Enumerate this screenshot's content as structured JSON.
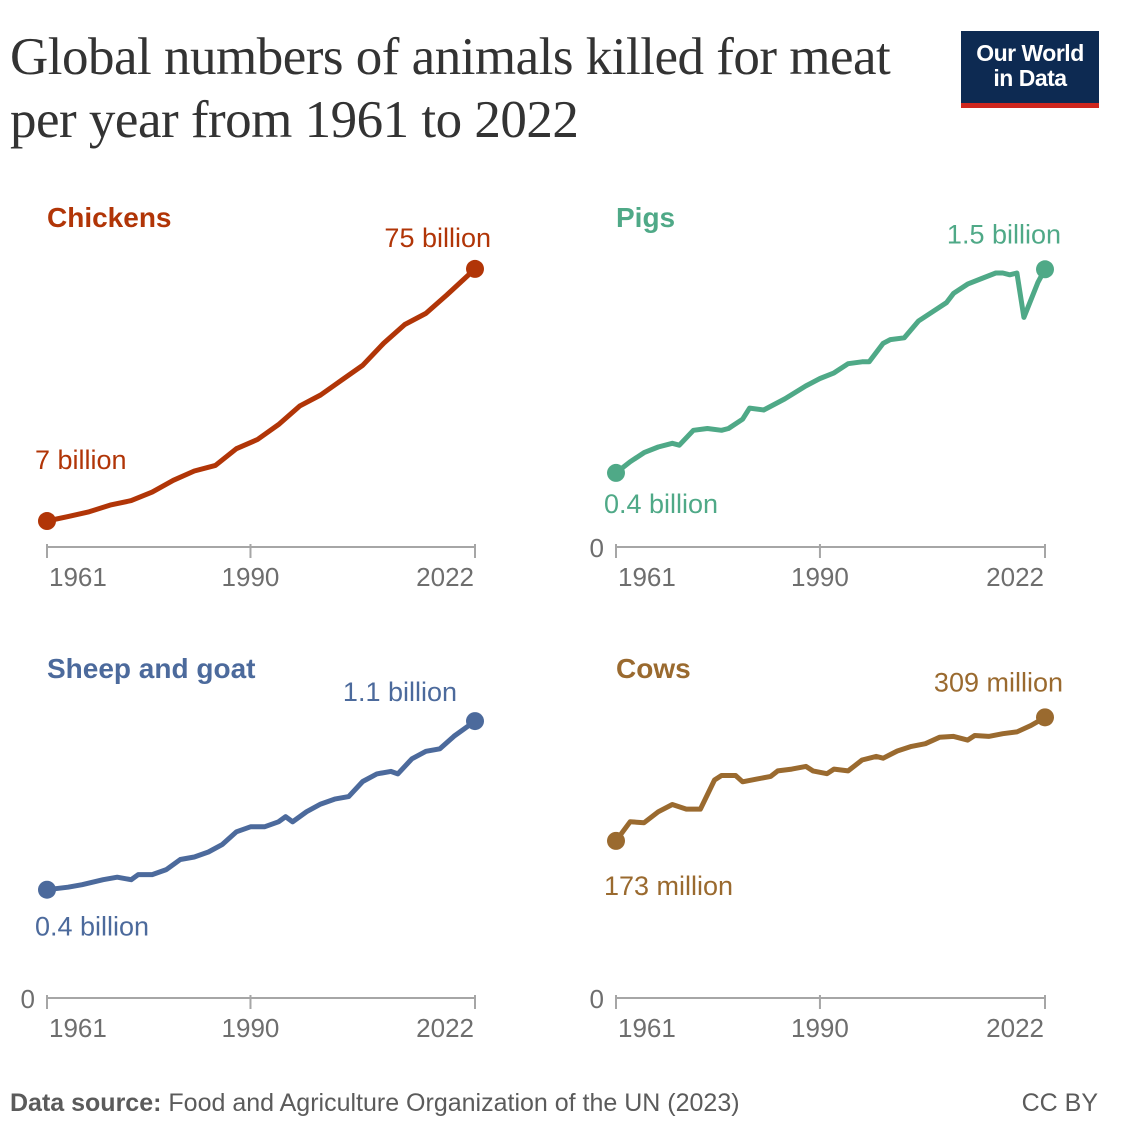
{
  "title": "Global numbers of animals killed for meat per year from 1961 to 2022",
  "logo": {
    "line1": "Our World",
    "line2": "in Data"
  },
  "footer": {
    "source_label": "Data source:",
    "source_text": "Food and Agriculture Organization of the UN (2023)",
    "license": "CC BY"
  },
  "chart_data": [
    {
      "type": "line",
      "title": "Chickens",
      "color": "#b13507",
      "unit": "billion",
      "xticks": [
        "1961",
        "1990",
        "2022"
      ],
      "zero_label": "",
      "start_label": "7 billion",
      "end_label": "75 billion",
      "ylim": [
        0,
        77.4
      ],
      "x": [
        1961,
        1964,
        1967,
        1970,
        1973,
        1976,
        1979,
        1982,
        1985,
        1988,
        1991,
        1994,
        1997,
        2000,
        2003,
        2006,
        2009,
        2012,
        2015,
        2018,
        2020,
        2022
      ],
      "y": [
        7,
        8.2,
        9.5,
        11.3,
        12.5,
        14.8,
        18,
        20.5,
        22,
        26.5,
        29,
        33,
        38,
        41,
        45,
        49,
        55,
        60,
        63,
        68,
        71.5,
        75
      ]
    },
    {
      "type": "line",
      "title": "Pigs",
      "color": "#4fa987",
      "unit": "billion",
      "xticks": [
        "1961",
        "1990",
        "2022"
      ],
      "zero_label": "0",
      "start_label": "0.4 billion",
      "end_label": "1.5 billion",
      "ylim": [
        0,
        1.55
      ],
      "x": [
        1961,
        1963,
        1965,
        1967,
        1969,
        1970,
        1972,
        1974,
        1976,
        1977,
        1979,
        1980,
        1982,
        1985,
        1988,
        1990,
        1992,
        1994,
        1996,
        1997,
        1999,
        2000,
        2002,
        2004,
        2006,
        2008,
        2009,
        2011,
        2013,
        2015,
        2016,
        2017,
        2018,
        2019,
        2021,
        2022
      ],
      "y": [
        0.4,
        0.46,
        0.51,
        0.54,
        0.56,
        0.55,
        0.63,
        0.64,
        0.63,
        0.64,
        0.69,
        0.75,
        0.74,
        0.8,
        0.87,
        0.91,
        0.94,
        0.99,
        1.0,
        1.0,
        1.1,
        1.12,
        1.13,
        1.22,
        1.27,
        1.32,
        1.37,
        1.42,
        1.45,
        1.48,
        1.48,
        1.47,
        1.48,
        1.24,
        1.43,
        1.5
      ]
    },
    {
      "type": "line",
      "title": "Sheep and goat",
      "color": "#4c6a9c",
      "unit": "billion",
      "xticks": [
        "1961",
        "1990",
        "2022"
      ],
      "zero_label": "0",
      "start_label": "0.4 billion",
      "end_label": "1.1 billion",
      "ylim": [
        0,
        1.14
      ],
      "x": [
        1961,
        1964,
        1966,
        1969,
        1971,
        1973,
        1974,
        1976,
        1978,
        1980,
        1982,
        1984,
        1986,
        1988,
        1990,
        1992,
        1994,
        1995,
        1996,
        1998,
        2000,
        2002,
        2004,
        2006,
        2008,
        2010,
        2011,
        2013,
        2015,
        2017,
        2019,
        2022
      ],
      "y": [
        0.43,
        0.44,
        0.45,
        0.47,
        0.48,
        0.47,
        0.49,
        0.49,
        0.51,
        0.55,
        0.56,
        0.58,
        0.61,
        0.66,
        0.68,
        0.68,
        0.7,
        0.72,
        0.7,
        0.74,
        0.77,
        0.79,
        0.8,
        0.86,
        0.89,
        0.9,
        0.89,
        0.95,
        0.98,
        0.99,
        1.04,
        1.1
      ]
    },
    {
      "type": "line",
      "title": "Cows",
      "color": "#9a6a2f",
      "unit": "million",
      "xticks": [
        "1961",
        "1990",
        "2022"
      ],
      "zero_label": "0",
      "start_label": "173 million",
      "end_label": "309 million",
      "ylim": [
        0,
        316
      ],
      "x": [
        1961,
        1963,
        1965,
        1967,
        1969,
        1971,
        1973,
        1975,
        1976,
        1978,
        1979,
        1981,
        1983,
        1984,
        1986,
        1988,
        1989,
        1991,
        1992,
        1994,
        1996,
        1998,
        1999,
        2001,
        2003,
        2005,
        2007,
        2009,
        2011,
        2012,
        2014,
        2016,
        2018,
        2020,
        2022
      ],
      "y": [
        173,
        194,
        193,
        205,
        213,
        208,
        208,
        240,
        245,
        245,
        238,
        241,
        244,
        250,
        252,
        255,
        250,
        247,
        252,
        250,
        262,
        266,
        264,
        272,
        277,
        280,
        287,
        288,
        284,
        289,
        288,
        291,
        293,
        300,
        309
      ]
    }
  ]
}
